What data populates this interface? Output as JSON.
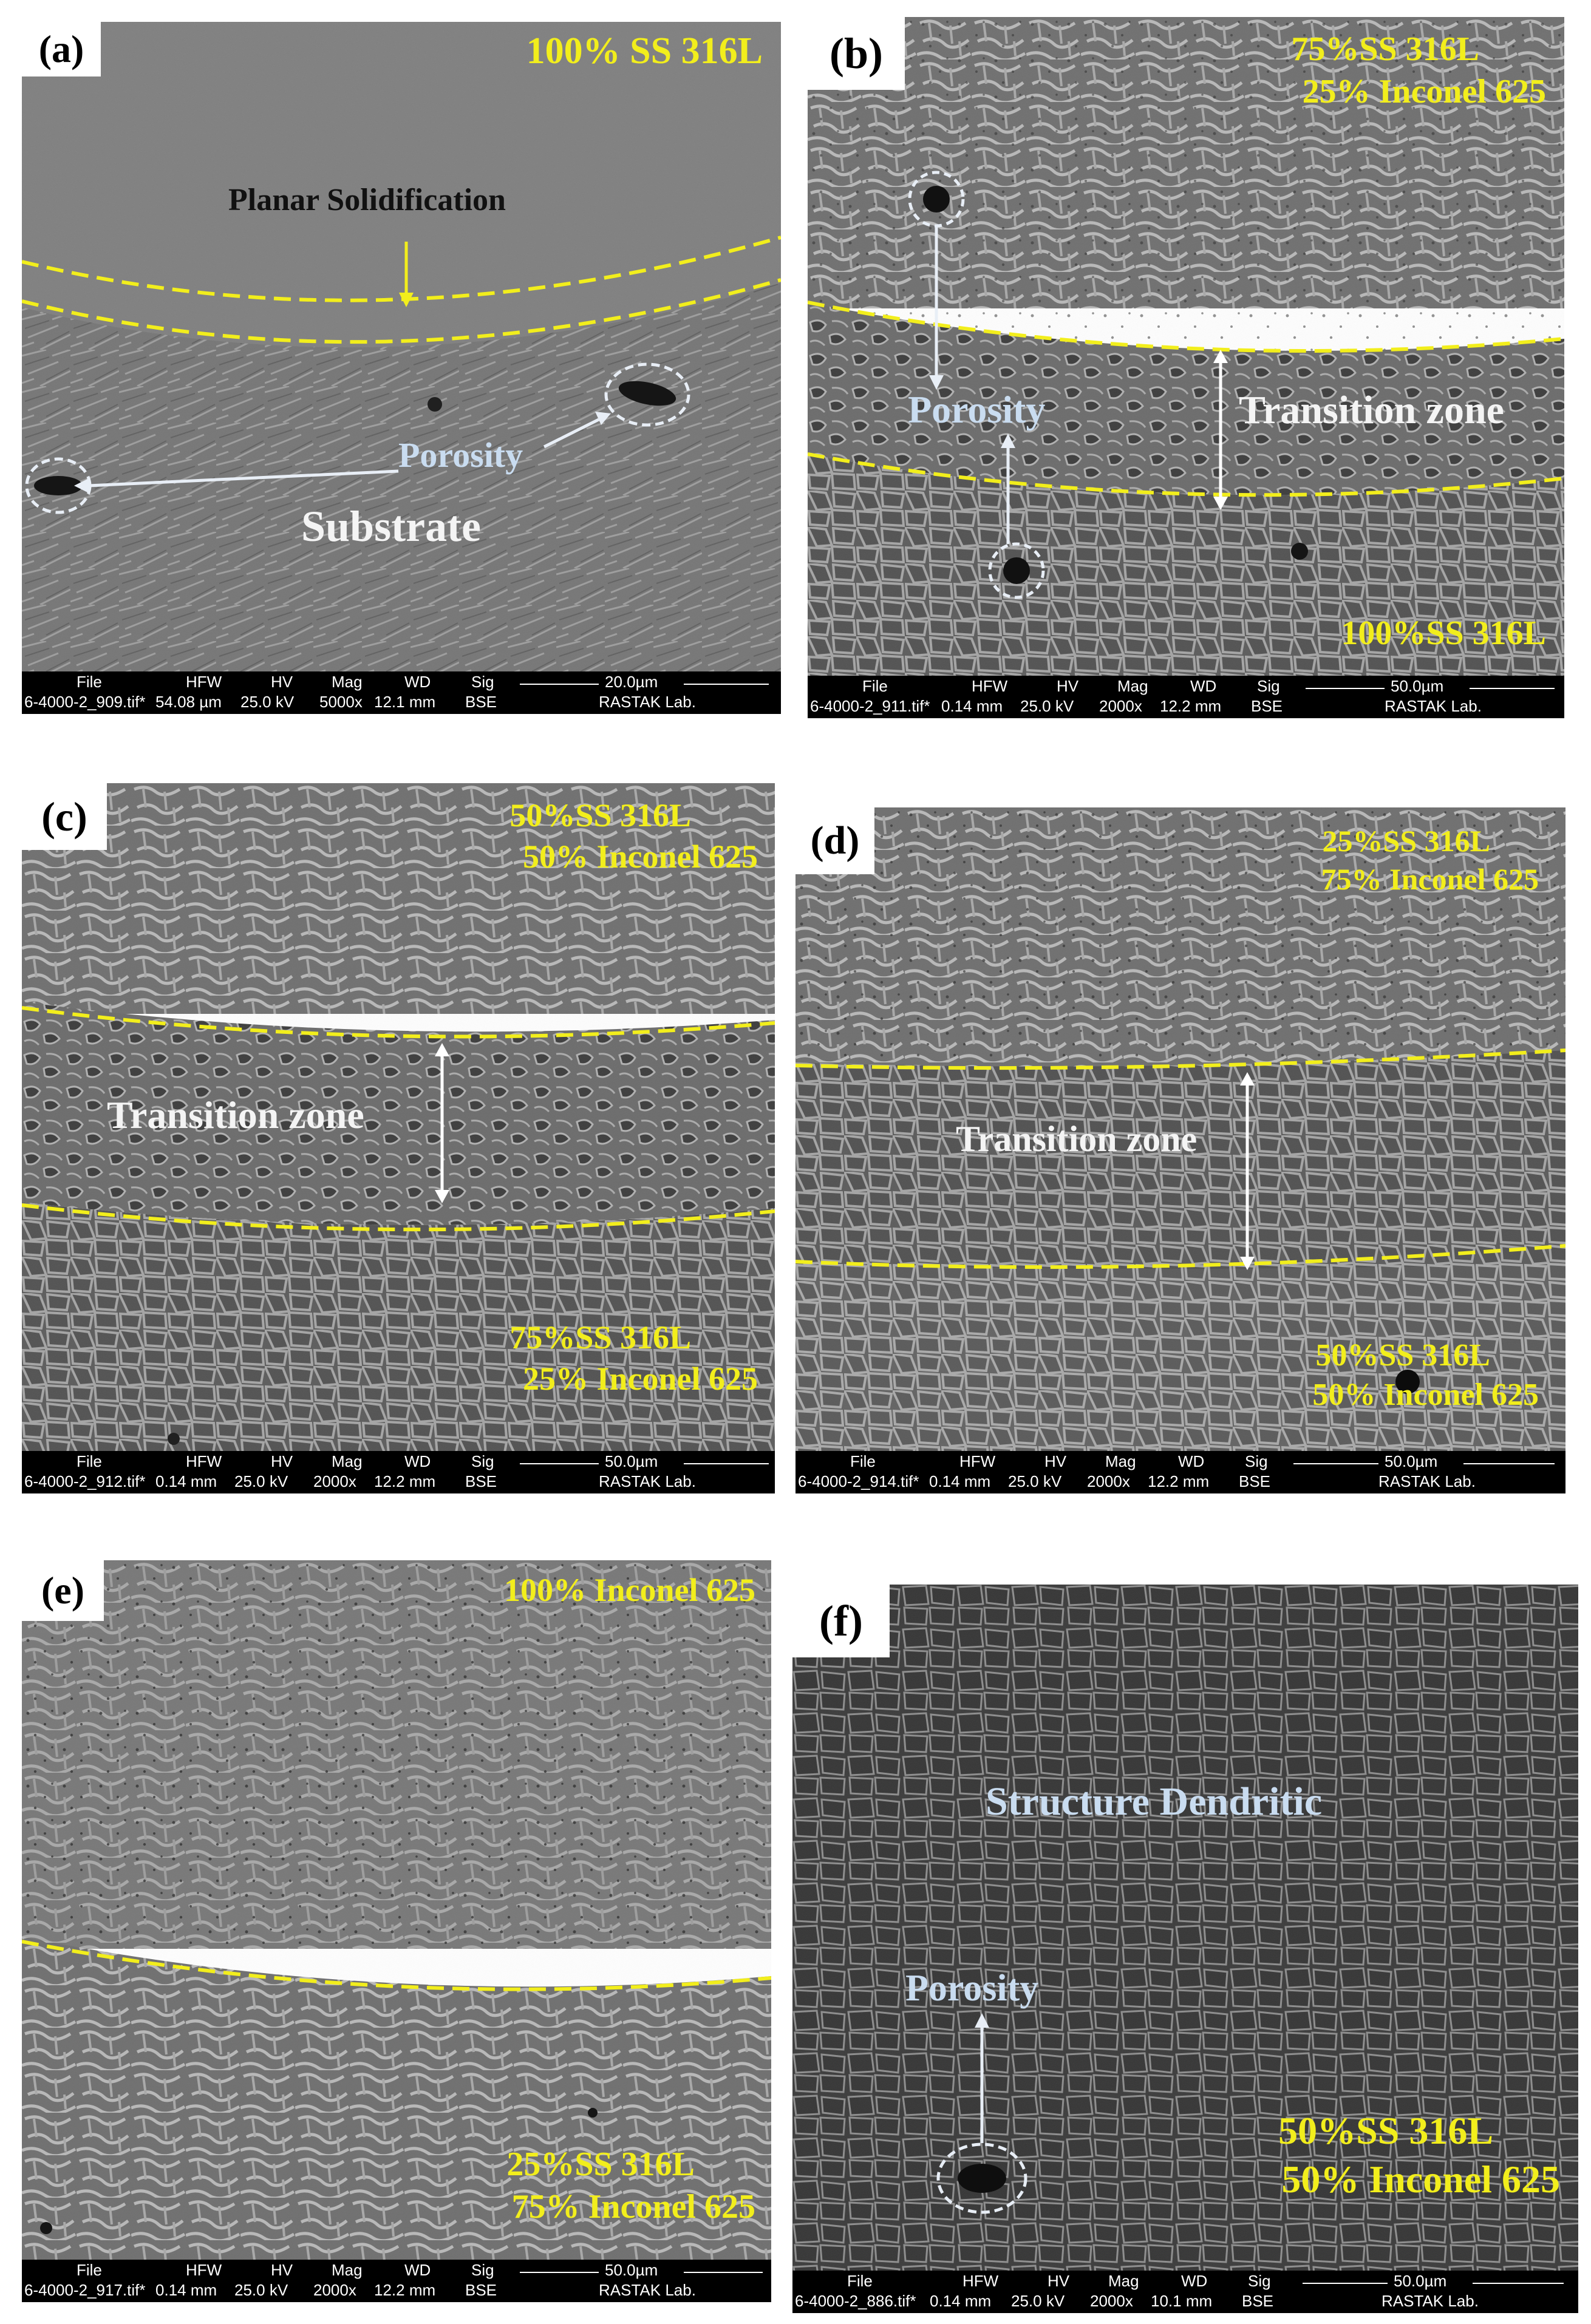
{
  "panels": [
    {
      "label": "(a)",
      "composition": [
        "100% SS 316L"
      ],
      "labels": {
        "planar": "Planar Solidification",
        "porosity": "Porosity",
        "substrate": "Substrate"
      },
      "databar": {
        "headers": {
          "file": "File",
          "hfw": "HFW",
          "hv": "HV",
          "mag": "Mag",
          "wd": "WD",
          "sig": "Sig"
        },
        "file": "6-4000-2_909.tif*",
        "hfw": "54.08 µm",
        "hv": "25.0 kV",
        "mag": "5000x",
        "wd": "12.1 mm",
        "sig": "BSE",
        "scale": "20.0µm",
        "lab": "RASTAK Lab."
      }
    },
    {
      "label": "(b)",
      "composition": [
        "75%SS 316L",
        "25% Inconel 625"
      ],
      "composition_bottom": [
        "100%SS 316L"
      ],
      "labels": {
        "porosity": "Porosity",
        "transition": "Transition zone"
      },
      "databar": {
        "headers": {
          "file": "File",
          "hfw": "HFW",
          "hv": "HV",
          "mag": "Mag",
          "wd": "WD",
          "sig": "Sig"
        },
        "file": "6-4000-2_911.tif*",
        "hfw": "0.14 mm",
        "hv": "25.0 kV",
        "mag": "2000x",
        "wd": "12.2 mm",
        "sig": "BSE",
        "scale": "50.0µm",
        "lab": "RASTAK Lab."
      }
    },
    {
      "label": "(c)",
      "composition": [
        "50%SS 316L",
        "50% Inconel 625"
      ],
      "composition_bottom": [
        "75%SS 316L",
        "25% Inconel 625"
      ],
      "labels": {
        "transition": "Transition zone"
      },
      "databar": {
        "headers": {
          "file": "File",
          "hfw": "HFW",
          "hv": "HV",
          "mag": "Mag",
          "wd": "WD",
          "sig": "Sig"
        },
        "file": "6-4000-2_912.tif*",
        "hfw": "0.14 mm",
        "hv": "25.0 kV",
        "mag": "2000x",
        "wd": "12.2 mm",
        "sig": "BSE",
        "scale": "50.0µm",
        "lab": "RASTAK Lab."
      }
    },
    {
      "label": "(d)",
      "composition": [
        "25%SS 316L",
        "75% Inconel 625"
      ],
      "composition_bottom": [
        "50%SS 316L",
        "50% Inconel 625"
      ],
      "labels": {
        "transition": "Transition zone"
      },
      "databar": {
        "headers": {
          "file": "File",
          "hfw": "HFW",
          "hv": "HV",
          "mag": "Mag",
          "wd": "WD",
          "sig": "Sig"
        },
        "file": "6-4000-2_914.tif*",
        "hfw": "0.14 mm",
        "hv": "25.0 kV",
        "mag": "2000x",
        "wd": "12.2 mm",
        "sig": "BSE",
        "scale": "50.0µm",
        "lab": "RASTAK Lab."
      }
    },
    {
      "label": "(e)",
      "composition": [
        "100% Inconel 625"
      ],
      "composition_bottom": [
        "25%SS 316L",
        "75% Inconel 625"
      ],
      "databar": {
        "headers": {
          "file": "File",
          "hfw": "HFW",
          "hv": "HV",
          "mag": "Mag",
          "wd": "WD",
          "sig": "Sig"
        },
        "file": "6-4000-2_917.tif*",
        "hfw": "0.14 mm",
        "hv": "25.0 kV",
        "mag": "2000x",
        "wd": "12.2 mm",
        "sig": "BSE",
        "scale": "50.0µm",
        "lab": "RASTAK Lab."
      }
    },
    {
      "label": "(f)",
      "composition_bottom": [
        "50%SS 316L",
        "50% Inconel 625"
      ],
      "labels": {
        "structure": "Structure Dendritic",
        "porosity": "Porosity"
      },
      "databar": {
        "headers": {
          "file": "File",
          "hfw": "HFW",
          "hv": "HV",
          "mag": "Mag",
          "wd": "WD",
          "sig": "Sig"
        },
        "file": "6-4000-2_886.tif*",
        "hfw": "0.14 mm",
        "hv": "25.0 kV",
        "mag": "2000x",
        "wd": "10.1 mm",
        "sig": "BSE",
        "scale": "50.0µm",
        "lab": "RASTAK Lab."
      }
    }
  ],
  "colors": {
    "boundary": "#f2ee1c",
    "annotation_arrow": "#e8eef6",
    "label_blue": "#c9dcf0"
  }
}
